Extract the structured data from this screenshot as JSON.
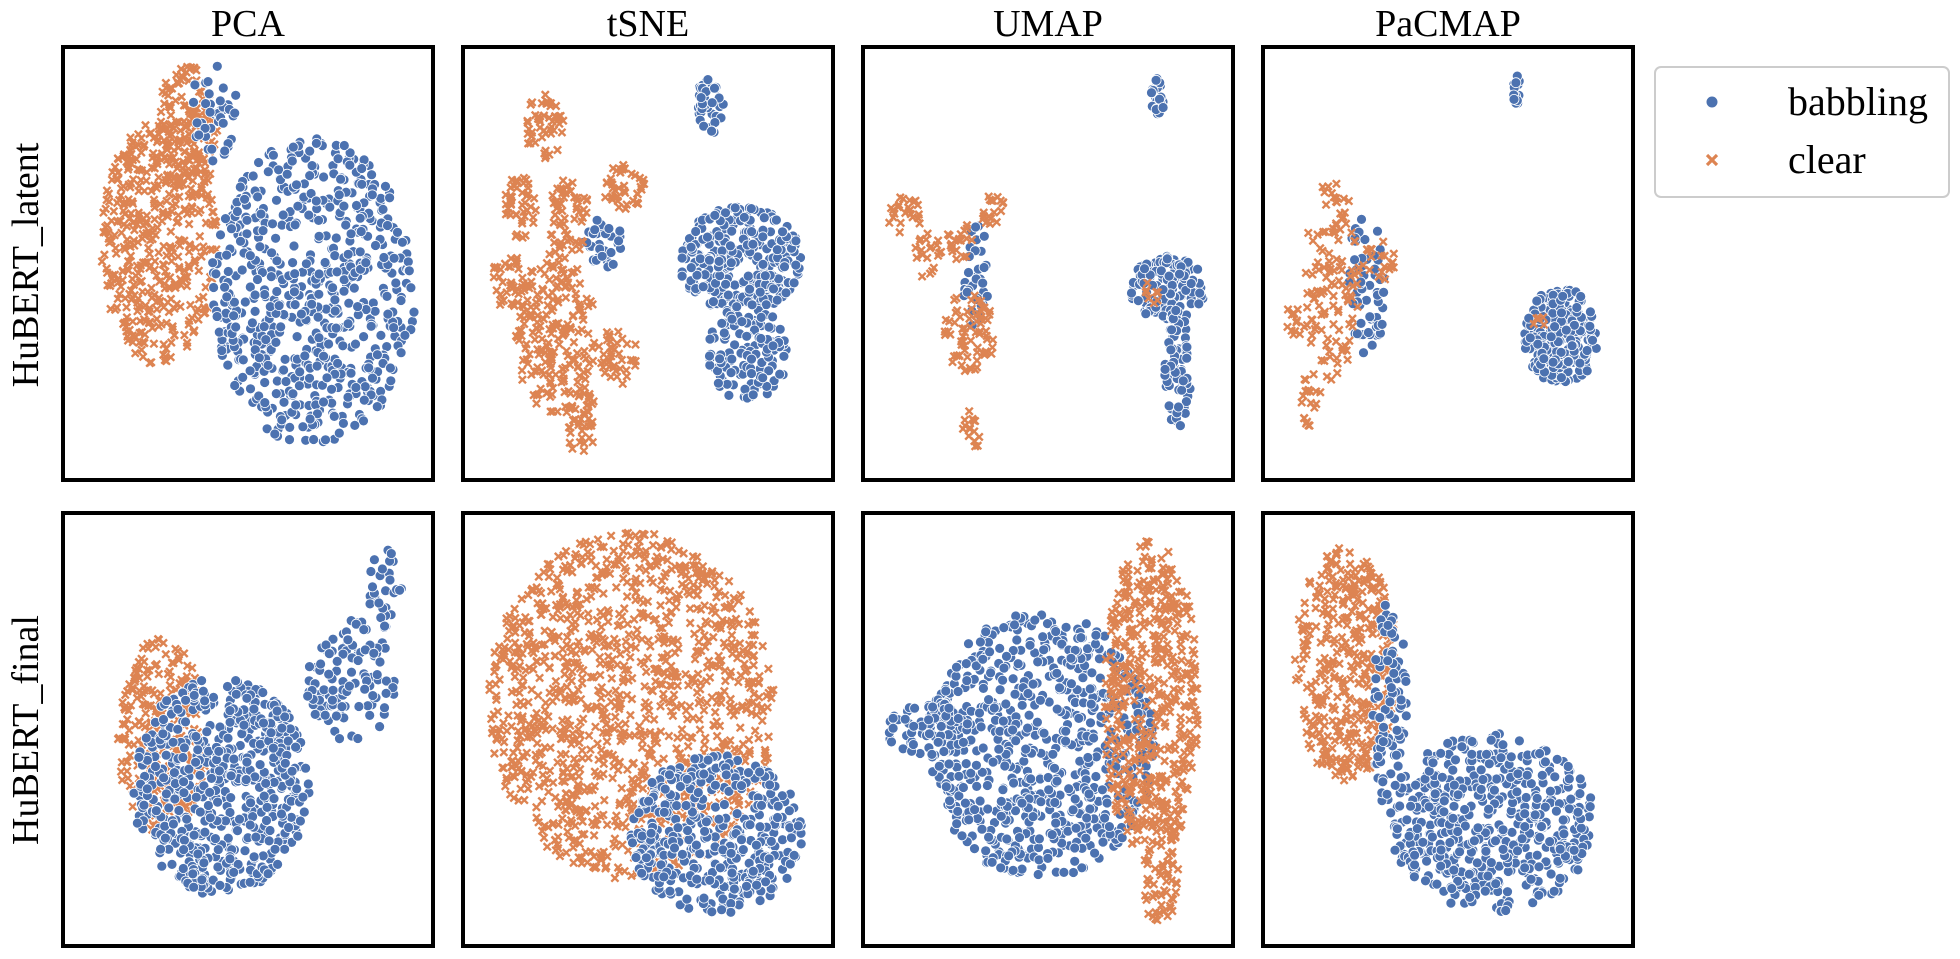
{
  "colors": {
    "babbling": "#4c72b0",
    "clear": "#dd8452",
    "frame": "#000000",
    "legend_border": "#cccccc"
  },
  "chart_data": {
    "type": "scatter",
    "grid": false,
    "axes_visible": false,
    "legend_placement": "upper-right, outside the grid",
    "columns": [
      "PCA",
      "tSNE",
      "UMAP",
      "PaCMAP"
    ],
    "rows": [
      "HuBERT_latent",
      "HuBERT_final"
    ],
    "legend": [
      {
        "name": "babbling",
        "marker": "circle",
        "color": "#4c72b0"
      },
      {
        "name": "clear",
        "marker": "x",
        "color": "#dd8452"
      }
    ],
    "panels": [
      {
        "row": "HuBERT_latent",
        "method": "PCA",
        "xlim": [
          0,
          1
        ],
        "ylim": [
          0,
          1
        ],
        "clusters": [
          {
            "series": "clear",
            "cx": 0.24,
            "cy": 0.55,
            "rx": 0.17,
            "ry": 0.3,
            "n": 420,
            "spread": "uniform"
          },
          {
            "series": "clear",
            "cx": 0.32,
            "cy": 0.82,
            "rx": 0.09,
            "ry": 0.17,
            "n": 150,
            "spread": "uniform"
          },
          {
            "series": "babbling",
            "cx": 0.69,
            "cy": 0.43,
            "rx": 0.3,
            "ry": 0.38,
            "n": 650,
            "spread": "uniform"
          },
          {
            "series": "babbling",
            "cx": 0.4,
            "cy": 0.87,
            "rx": 0.07,
            "ry": 0.12,
            "n": 45,
            "spread": "uniform"
          }
        ]
      },
      {
        "row": "HuBERT_latent",
        "method": "tSNE",
        "xlim": [
          0,
          1
        ],
        "ylim": [
          0,
          1
        ],
        "clusters": [
          {
            "series": "babbling",
            "cx": 0.68,
            "cy": 0.89,
            "rx": 0.04,
            "ry": 0.07,
            "n": 40,
            "spread": "uniform"
          },
          {
            "series": "babbling",
            "cx": 0.77,
            "cy": 0.51,
            "rx": 0.18,
            "ry": 0.13,
            "n": 300,
            "spread": "uniform"
          },
          {
            "series": "babbling",
            "cx": 0.79,
            "cy": 0.28,
            "rx": 0.12,
            "ry": 0.12,
            "n": 130,
            "spread": "uniform"
          },
          {
            "series": "babbling",
            "cx": 0.37,
            "cy": 0.55,
            "rx": 0.06,
            "ry": 0.06,
            "n": 40,
            "spread": "uniform"
          },
          {
            "series": "clear",
            "cx": 0.2,
            "cy": 0.84,
            "rx": 0.06,
            "ry": 0.08,
            "n": 50,
            "spread": "uniform"
          },
          {
            "series": "clear",
            "cx": 0.13,
            "cy": 0.64,
            "rx": 0.05,
            "ry": 0.08,
            "n": 45,
            "spread": "uniform"
          },
          {
            "series": "clear",
            "cx": 0.27,
            "cy": 0.61,
            "rx": 0.06,
            "ry": 0.1,
            "n": 60,
            "spread": "uniform"
          },
          {
            "series": "clear",
            "cx": 0.43,
            "cy": 0.69,
            "rx": 0.06,
            "ry": 0.07,
            "n": 45,
            "spread": "uniform"
          },
          {
            "series": "clear",
            "cx": 0.09,
            "cy": 0.46,
            "rx": 0.05,
            "ry": 0.07,
            "n": 35,
            "spread": "uniform"
          },
          {
            "series": "clear",
            "cx": 0.23,
            "cy": 0.33,
            "rx": 0.12,
            "ry": 0.2,
            "n": 200,
            "spread": "uniform"
          },
          {
            "series": "clear",
            "cx": 0.41,
            "cy": 0.27,
            "rx": 0.06,
            "ry": 0.07,
            "n": 40,
            "spread": "uniform"
          },
          {
            "series": "clear",
            "cx": 0.3,
            "cy": 0.11,
            "rx": 0.05,
            "ry": 0.09,
            "n": 40,
            "spread": "uniform"
          }
        ]
      },
      {
        "row": "HuBERT_latent",
        "method": "UMAP",
        "xlim": [
          0,
          1
        ],
        "ylim": [
          0,
          1
        ],
        "clusters": [
          {
            "series": "babbling",
            "cx": 0.82,
            "cy": 0.91,
            "rx": 0.02,
            "ry": 0.05,
            "n": 25,
            "spread": "uniform"
          },
          {
            "series": "babbling",
            "cx": 0.85,
            "cy": 0.44,
            "rx": 0.11,
            "ry": 0.08,
            "n": 140,
            "spread": "uniform"
          },
          {
            "series": "babbling",
            "cx": 0.88,
            "cy": 0.24,
            "rx": 0.04,
            "ry": 0.15,
            "n": 70,
            "spread": "uniform"
          },
          {
            "series": "babbling",
            "cx": 0.29,
            "cy": 0.47,
            "rx": 0.04,
            "ry": 0.13,
            "n": 35,
            "spread": "uniform"
          },
          {
            "series": "clear",
            "cx": 0.08,
            "cy": 0.62,
            "rx": 0.05,
            "ry": 0.05,
            "n": 25,
            "spread": "uniform"
          },
          {
            "series": "clear",
            "cx": 0.15,
            "cy": 0.52,
            "rx": 0.04,
            "ry": 0.06,
            "n": 20,
            "spread": "uniform"
          },
          {
            "series": "clear",
            "cx": 0.24,
            "cy": 0.56,
            "rx": 0.04,
            "ry": 0.05,
            "n": 20,
            "spread": "uniform"
          },
          {
            "series": "clear",
            "cx": 0.34,
            "cy": 0.63,
            "rx": 0.04,
            "ry": 0.04,
            "n": 18,
            "spread": "uniform"
          },
          {
            "series": "clear",
            "cx": 0.27,
            "cy": 0.33,
            "rx": 0.08,
            "ry": 0.1,
            "n": 70,
            "spread": "uniform"
          },
          {
            "series": "clear",
            "cx": 0.28,
            "cy": 0.09,
            "rx": 0.03,
            "ry": 0.05,
            "n": 15,
            "spread": "uniform"
          },
          {
            "series": "clear",
            "cx": 0.81,
            "cy": 0.43,
            "rx": 0.03,
            "ry": 0.03,
            "n": 8,
            "spread": "uniform"
          }
        ]
      },
      {
        "row": "HuBERT_latent",
        "method": "PaCMAP",
        "xlim": [
          0,
          1
        ],
        "ylim": [
          0,
          1
        ],
        "clusters": [
          {
            "series": "babbling",
            "cx": 0.7,
            "cy": 0.93,
            "rx": 0.01,
            "ry": 0.04,
            "n": 15,
            "spread": "uniform"
          },
          {
            "series": "babbling",
            "cx": 0.83,
            "cy": 0.32,
            "rx": 0.11,
            "ry": 0.12,
            "n": 220,
            "spread": "uniform"
          },
          {
            "series": "babbling",
            "cx": 0.26,
            "cy": 0.45,
            "rx": 0.06,
            "ry": 0.18,
            "n": 60,
            "spread": "uniform"
          },
          {
            "series": "clear",
            "cx": 0.16,
            "cy": 0.46,
            "rx": 0.08,
            "ry": 0.25,
            "n": 120,
            "spread": "uniform"
          },
          {
            "series": "clear",
            "cx": 0.1,
            "cy": 0.17,
            "rx": 0.03,
            "ry": 0.1,
            "n": 20,
            "spread": "uniform"
          },
          {
            "series": "clear",
            "cx": 0.06,
            "cy": 0.36,
            "rx": 0.04,
            "ry": 0.05,
            "n": 15,
            "spread": "uniform"
          },
          {
            "series": "clear",
            "cx": 0.3,
            "cy": 0.5,
            "rx": 0.05,
            "ry": 0.06,
            "n": 20,
            "spread": "uniform"
          },
          {
            "series": "clear",
            "cx": 0.77,
            "cy": 0.35,
            "rx": 0.02,
            "ry": 0.02,
            "n": 5,
            "spread": "uniform"
          }
        ]
      },
      {
        "row": "HuBERT_final",
        "method": "PCA",
        "xlim": [
          0,
          1
        ],
        "ylim": [
          0,
          1
        ],
        "clusters": [
          {
            "series": "clear",
            "cx": 0.25,
            "cy": 0.48,
            "rx": 0.13,
            "ry": 0.25,
            "n": 260,
            "spread": "uniform"
          },
          {
            "series": "babbling",
            "cx": 0.42,
            "cy": 0.36,
            "rx": 0.26,
            "ry": 0.27,
            "n": 600,
            "spread": "uniform"
          },
          {
            "series": "babbling",
            "cx": 0.8,
            "cy": 0.62,
            "rx": 0.13,
            "ry": 0.15,
            "n": 110,
            "spread": "uniform"
          },
          {
            "series": "babbling",
            "cx": 0.9,
            "cy": 0.85,
            "rx": 0.05,
            "ry": 0.1,
            "n": 30,
            "spread": "uniform"
          }
        ]
      },
      {
        "row": "HuBERT_final",
        "method": "tSNE",
        "xlim": [
          0,
          1
        ],
        "ylim": [
          0,
          1
        ],
        "clusters": [
          {
            "series": "clear",
            "cx": 0.45,
            "cy": 0.56,
            "rx": 0.42,
            "ry": 0.43,
            "n": 1200,
            "spread": "uniform"
          },
          {
            "series": "babbling",
            "cx": 0.7,
            "cy": 0.24,
            "rx": 0.25,
            "ry": 0.2,
            "n": 420,
            "spread": "uniform"
          }
        ]
      },
      {
        "row": "HuBERT_final",
        "method": "UMAP",
        "xlim": [
          0,
          1
        ],
        "ylim": [
          0,
          1
        ],
        "clusters": [
          {
            "series": "babbling",
            "cx": 0.48,
            "cy": 0.46,
            "rx": 0.33,
            "ry": 0.33,
            "n": 700,
            "spread": "uniform"
          },
          {
            "series": "babbling",
            "cx": 0.15,
            "cy": 0.5,
            "rx": 0.12,
            "ry": 0.07,
            "n": 80,
            "spread": "uniform"
          },
          {
            "series": "clear",
            "cx": 0.8,
            "cy": 0.57,
            "rx": 0.14,
            "ry": 0.4,
            "n": 520,
            "spread": "uniform"
          },
          {
            "series": "clear",
            "cx": 0.83,
            "cy": 0.12,
            "rx": 0.06,
            "ry": 0.1,
            "n": 50,
            "spread": "uniform"
          }
        ]
      },
      {
        "row": "HuBERT_final",
        "method": "PaCMAP",
        "xlim": [
          0,
          1
        ],
        "ylim": [
          0,
          1
        ],
        "clusters": [
          {
            "series": "clear",
            "cx": 0.2,
            "cy": 0.66,
            "rx": 0.15,
            "ry": 0.29,
            "n": 400,
            "spread": "uniform"
          },
          {
            "series": "babbling",
            "cx": 0.63,
            "cy": 0.27,
            "rx": 0.3,
            "ry": 0.22,
            "n": 520,
            "spread": "uniform"
          },
          {
            "series": "babbling",
            "cx": 0.33,
            "cy": 0.55,
            "rx": 0.05,
            "ry": 0.28,
            "n": 90,
            "spread": "uniform"
          }
        ]
      }
    ]
  }
}
